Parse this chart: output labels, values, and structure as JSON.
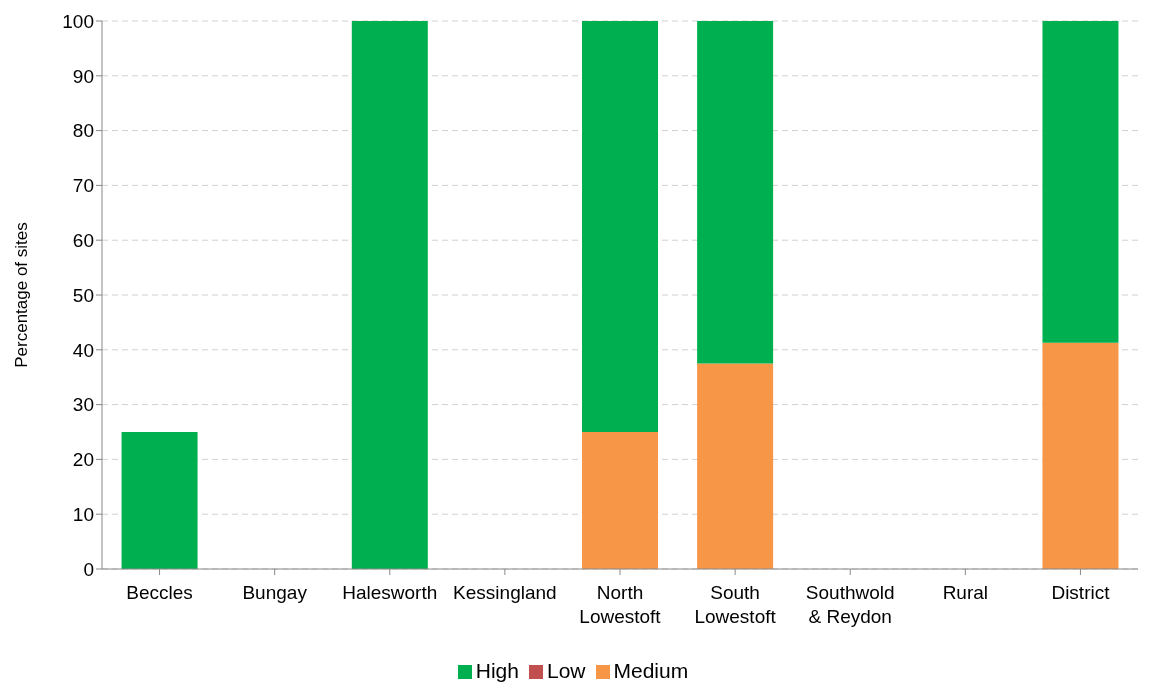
{
  "chart_data": {
    "type": "bar",
    "stacked": true,
    "ylabel": "Percentage of sites",
    "categories": [
      "Beccles",
      "Bungay",
      "Halesworth",
      "Kessingland",
      "North Lowestoft",
      "South Lowestoft",
      "Southwold & Reydon",
      "Rural",
      "District"
    ],
    "series": [
      {
        "name": "Low",
        "color": "#c0504d",
        "values": [
          0,
          0,
          0,
          0,
          0,
          0,
          0,
          0,
          0
        ]
      },
      {
        "name": "Medium",
        "color": "#f79646",
        "values": [
          0,
          0,
          0,
          0,
          25,
          37.5,
          0,
          0,
          41.3
        ]
      },
      {
        "name": "High",
        "color": "#00b050",
        "values": [
          25,
          0,
          100,
          0,
          75,
          62.5,
          0,
          0,
          58.7
        ]
      }
    ],
    "ylim": [
      0,
      100
    ],
    "yticks": [
      0,
      10,
      20,
      30,
      40,
      50,
      60,
      70,
      80,
      90,
      100
    ],
    "grid": "y",
    "legend": "bottom"
  }
}
